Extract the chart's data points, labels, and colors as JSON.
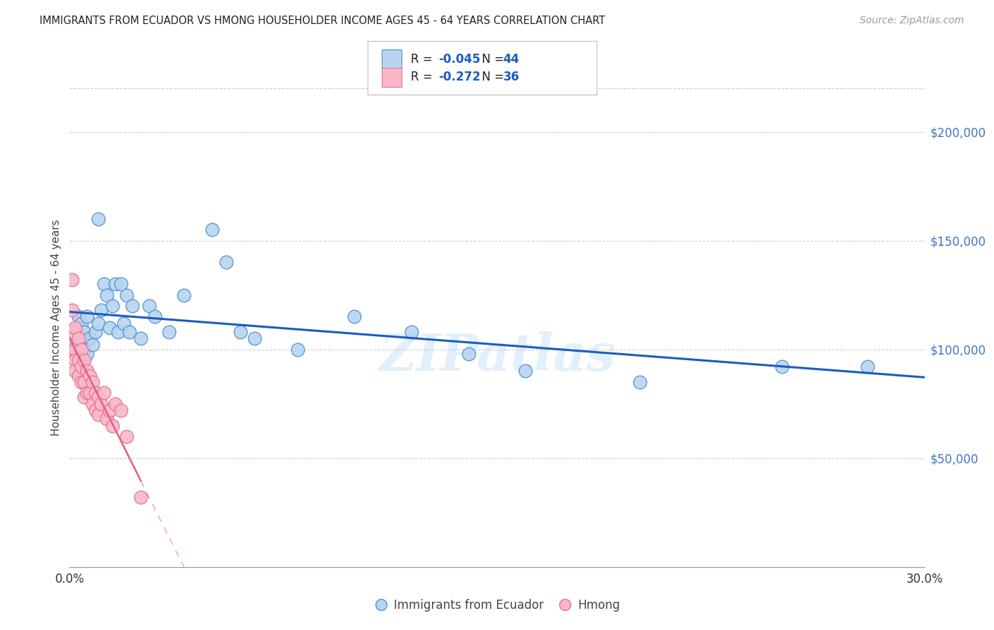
{
  "title": "IMMIGRANTS FROM ECUADOR VS HMONG HOUSEHOLDER INCOME AGES 45 - 64 YEARS CORRELATION CHART",
  "source": "Source: ZipAtlas.com",
  "ylabel": "Householder Income Ages 45 - 64 years",
  "legend_ecuador": "Immigrants from Ecuador",
  "legend_hmong": "Hmong",
  "r_ecuador": -0.045,
  "n_ecuador": 44,
  "r_hmong": -0.272,
  "n_hmong": 36,
  "xmin": 0.0,
  "xmax": 0.3,
  "ymin": 0,
  "ymax": 220000,
  "ytick_vals": [
    50000,
    100000,
    150000,
    200000
  ],
  "ytick_labels": [
    "$50,000",
    "$100,000",
    "$150,000",
    "$200,000"
  ],
  "color_ecuador": "#b8d4f0",
  "color_hmong": "#f8b8c8",
  "color_ecuador_edge": "#5090d0",
  "color_hmong_edge": "#e87090",
  "color_ecuador_line": "#1a5cbf",
  "color_hmong_line": "#e06080",
  "watermark": "ZIPatlas",
  "ecuador_points_x": [
    0.001,
    0.002,
    0.003,
    0.003,
    0.004,
    0.004,
    0.005,
    0.005,
    0.006,
    0.006,
    0.007,
    0.008,
    0.009,
    0.01,
    0.01,
    0.011,
    0.012,
    0.013,
    0.014,
    0.015,
    0.016,
    0.017,
    0.018,
    0.019,
    0.02,
    0.021,
    0.022,
    0.025,
    0.028,
    0.03,
    0.035,
    0.04,
    0.05,
    0.055,
    0.06,
    0.065,
    0.08,
    0.1,
    0.12,
    0.14,
    0.16,
    0.2,
    0.25,
    0.28
  ],
  "ecuador_points_y": [
    103000,
    108000,
    110000,
    115000,
    105000,
    112000,
    100000,
    108000,
    98000,
    115000,
    105000,
    102000,
    108000,
    160000,
    112000,
    118000,
    130000,
    125000,
    110000,
    120000,
    130000,
    108000,
    130000,
    112000,
    125000,
    108000,
    120000,
    105000,
    120000,
    115000,
    108000,
    125000,
    155000,
    140000,
    108000,
    105000,
    100000,
    115000,
    108000,
    98000,
    90000,
    85000,
    92000,
    92000
  ],
  "hmong_points_x": [
    0.001,
    0.001,
    0.001,
    0.001,
    0.002,
    0.002,
    0.002,
    0.002,
    0.003,
    0.003,
    0.003,
    0.004,
    0.004,
    0.004,
    0.005,
    0.005,
    0.005,
    0.006,
    0.006,
    0.007,
    0.007,
    0.008,
    0.008,
    0.009,
    0.009,
    0.01,
    0.01,
    0.011,
    0.012,
    0.013,
    0.014,
    0.015,
    0.016,
    0.018,
    0.02,
    0.025
  ],
  "hmong_points_y": [
    132000,
    118000,
    108000,
    100000,
    110000,
    100000,
    95000,
    90000,
    105000,
    95000,
    88000,
    100000,
    92000,
    85000,
    95000,
    85000,
    78000,
    90000,
    80000,
    88000,
    80000,
    85000,
    75000,
    80000,
    72000,
    78000,
    70000,
    75000,
    80000,
    68000,
    72000,
    65000,
    75000,
    72000,
    60000,
    32000
  ]
}
